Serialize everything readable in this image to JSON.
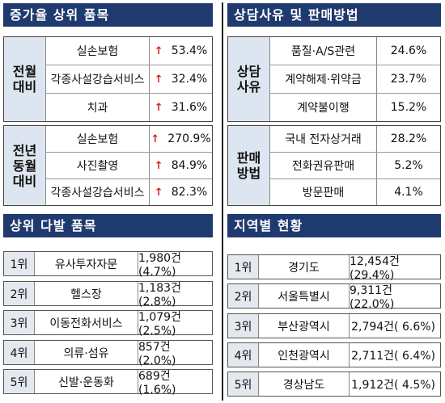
{
  "increase": {
    "title": "증가율 상위 품목",
    "groups": [
      {
        "label": "전월\n대비",
        "rows": [
          {
            "name": "실손보험",
            "value": "53.4%"
          },
          {
            "name": "각종사설강습서비스",
            "value": "32.4%"
          },
          {
            "name": "치과",
            "value": "31.6%"
          }
        ]
      },
      {
        "label": "전년\n동월\n대비",
        "rows": [
          {
            "name": "실손보험",
            "value": "270.9%"
          },
          {
            "name": "사진촬영",
            "value": "84.9%"
          },
          {
            "name": "각종사설강습서비스",
            "value": "82.3%"
          }
        ]
      }
    ]
  },
  "consult": {
    "title": "상담사유 및 판매방법",
    "groups": [
      {
        "label": "상담\n사유",
        "rows": [
          {
            "name": "품질·A/S관련",
            "value": "24.6%"
          },
          {
            "name": "계약해제·위약금",
            "value": "23.7%"
          },
          {
            "name": "계약불이행",
            "value": "15.2%"
          }
        ]
      },
      {
        "label": "판매\n방법",
        "rows": [
          {
            "name": "국내 전자상거래",
            "value": "28.2%"
          },
          {
            "name": "전화권유판매",
            "value": "5.2%"
          },
          {
            "name": "방문판매",
            "value": "4.1%"
          }
        ]
      }
    ]
  },
  "frequent": {
    "title": "상위 다발 품목",
    "rows": [
      {
        "rank": "1위",
        "name": "유사투자자문",
        "value": "1,980건(4.7%)"
      },
      {
        "rank": "2위",
        "name": "헬스장",
        "value": "1,183건(2.8%)"
      },
      {
        "rank": "3위",
        "name": "이동전화서비스",
        "value": "1,079건(2.5%)"
      },
      {
        "rank": "4위",
        "name": "의류·섬유",
        "value": "857건(2.0%)"
      },
      {
        "rank": "5위",
        "name": "신발·운동화",
        "value": "689건(1.6%)"
      }
    ]
  },
  "region": {
    "title": "지역별 현황",
    "rows": [
      {
        "rank": "1위",
        "name": "경기도",
        "value": "12,454건(29.4%)"
      },
      {
        "rank": "2위",
        "name": "서울특별시",
        "value": "9,311건(22.0%)"
      },
      {
        "rank": "3위",
        "name": "부산광역시",
        "value": "2,794건( 6.6%)"
      },
      {
        "rank": "4위",
        "name": "인천광역시",
        "value": "2,711건( 6.4%)"
      },
      {
        "rank": "5위",
        "name": "경상남도",
        "value": "1,912건( 4.5%)"
      }
    ]
  },
  "icons": {
    "increase_arrow": "up-arrow-icon"
  },
  "colors": {
    "header_bg": "#1f3a6e",
    "arrow": "#d81e1e",
    "label_bg": "#dde5f0"
  }
}
